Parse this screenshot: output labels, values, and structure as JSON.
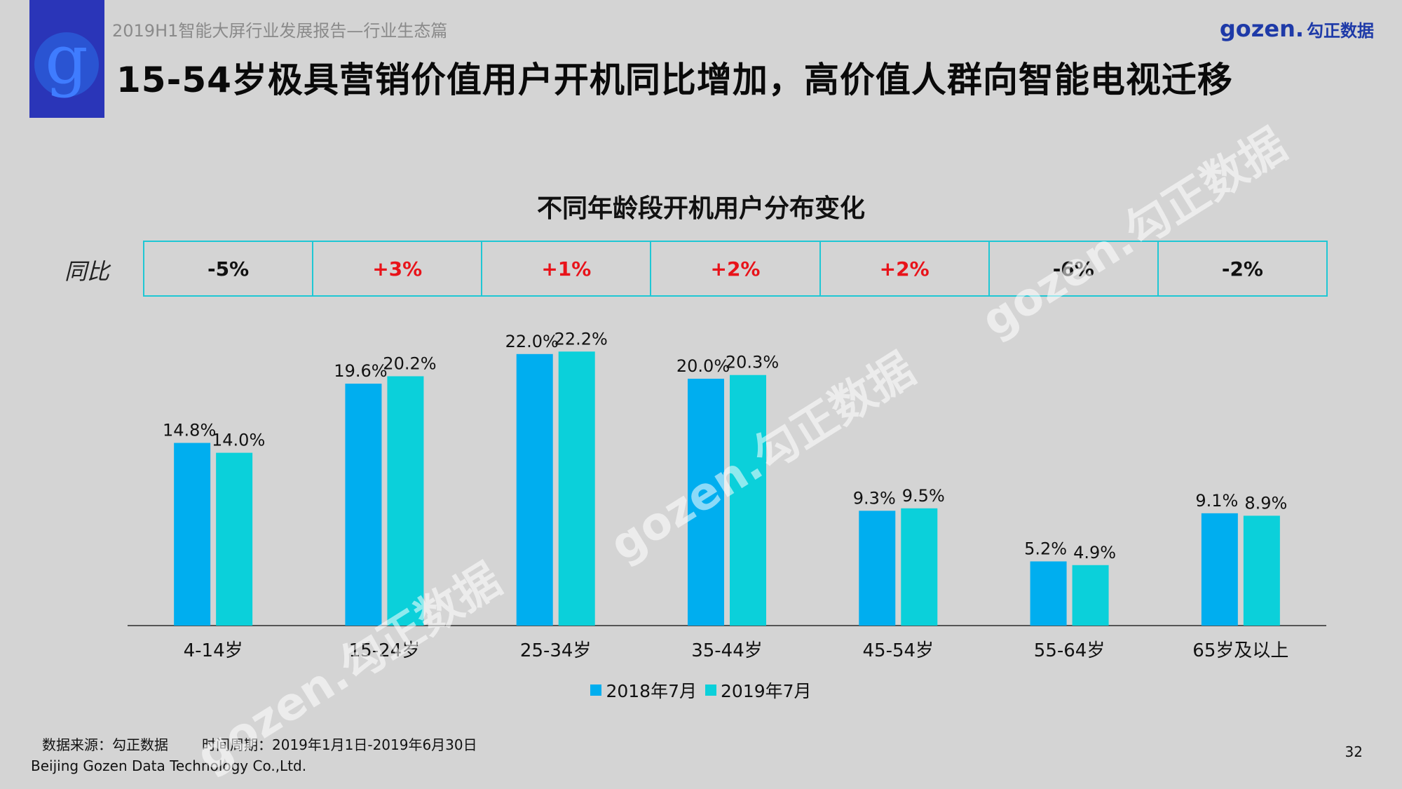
{
  "header": {
    "subtitle": "2019H1智能大屏行业发展报告—行业生态篇",
    "title": "15-54岁极具营销价值用户开机同比增加，高价值人群向智能电视迁移",
    "brand_latin": "gozen.",
    "brand_cn": "勾正数据",
    "logo_letter": "g"
  },
  "yoy": {
    "label": "同比",
    "cells": [
      "-5%",
      "+3%",
      "+1%",
      "+2%",
      "+2%",
      "-6%",
      "-2%"
    ]
  },
  "chart_data": {
    "type": "bar",
    "title": "不同年龄段开机用户分布变化",
    "categories": [
      "4-14岁",
      "15-24岁",
      "25-34岁",
      "35-44岁",
      "45-54岁",
      "55-64岁",
      "65岁及以上"
    ],
    "series": [
      {
        "name": "2018年7月",
        "values": [
          14.8,
          19.6,
          22.0,
          20.0,
          9.3,
          5.2,
          9.1
        ],
        "labels": [
          "14.8%",
          "19.6%",
          "22.0%",
          "20.0%",
          "9.3%",
          "5.2%",
          "9.1%"
        ],
        "color": "#00aeef"
      },
      {
        "name": "2019年7月",
        "values": [
          14.0,
          20.2,
          22.2,
          20.3,
          9.5,
          4.9,
          8.9
        ],
        "labels": [
          "14.0%",
          "20.2%",
          "22.2%",
          "20.3%",
          "9.5%",
          "4.9%",
          "8.9%"
        ],
        "color": "#0bd0da"
      }
    ],
    "xlabel": "",
    "ylabel": "",
    "ylim": [
      0,
      25
    ],
    "grid": false,
    "legend": "bottom-center"
  },
  "footer": {
    "source": "数据来源：勾正数据",
    "period": "时间周期：2019年1月1日-2019年6月30日",
    "company": "Beijing Gozen Data Technology Co.,Ltd.",
    "page": "32"
  },
  "watermark": {
    "text": "gozen.勾正数据"
  },
  "colors": {
    "logo_bg": "#2a35b8",
    "table_border": "#1fc7d4",
    "positive": "#e8131a",
    "background": "#d4d4d4"
  }
}
